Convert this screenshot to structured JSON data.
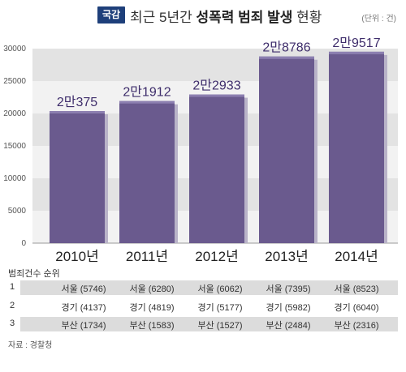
{
  "header": {
    "badge": "국감",
    "title_prefix": "최근 5년간 ",
    "title_bold": "성폭력 범죄 발생",
    "title_suffix": " 현황",
    "unit": "(단위 : 건)"
  },
  "chart_data": {
    "type": "bar",
    "categories": [
      "2010년",
      "2011년",
      "2012년",
      "2013년",
      "2014년"
    ],
    "values": [
      20375,
      21912,
      22933,
      28786,
      29517
    ],
    "data_labels": [
      "2만375",
      "2만1912",
      "2만2933",
      "2만8786",
      "2만9517"
    ],
    "yticks": [
      "0",
      "5000",
      "10000",
      "15000",
      "20000",
      "25000",
      "30000"
    ],
    "ylim": [
      0,
      30000
    ],
    "bar_color": "#6a5a8e",
    "grid": "alternating bands"
  },
  "ranking": {
    "title": "범죄건수 순위",
    "rows": [
      {
        "rank": "1",
        "cells": [
          "서울 (5746)",
          "서울 (6280)",
          "서울 (6062)",
          "서울 (7395)",
          "서울 (8523)"
        ]
      },
      {
        "rank": "2",
        "cells": [
          "경기 (4137)",
          "경기 (4819)",
          "경기 (5177)",
          "경기 (5982)",
          "경기 (6040)"
        ]
      },
      {
        "rank": "3",
        "cells": [
          "부산 (1734)",
          "부산 (1583)",
          "부산 (1527)",
          "부산 (2484)",
          "부산 (2316)"
        ]
      }
    ]
  },
  "source": "자료 : 경찰청"
}
